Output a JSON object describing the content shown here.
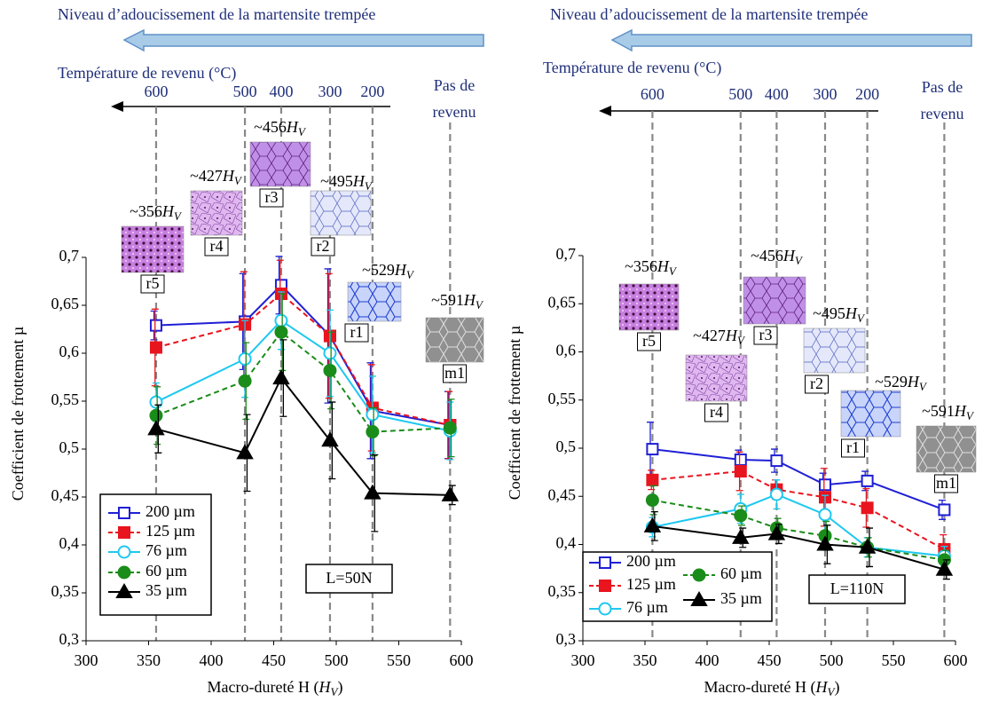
{
  "chart_data": [
    {
      "type": "line",
      "top_label": "Niveau d’adoucissement de la martensite trempée",
      "temperature_axis": {
        "title": "Température de revenu (°C)",
        "labels": [
          600,
          500,
          400,
          300,
          200
        ]
      },
      "no_temper_label": [
        "Pas de",
        "revenu"
      ],
      "hardness_unit": {
        "main": "H",
        "sub": "V"
      },
      "samples": [
        {
          "name": "r5",
          "hardness": "~356"
        },
        {
          "name": "r4",
          "hardness": "~427"
        },
        {
          "name": "r3",
          "hardness": "~456"
        },
        {
          "name": "r2",
          "hardness": "~495"
        },
        {
          "name": "r1",
          "hardness": "~529"
        },
        {
          "name": "m1",
          "hardness": "~591"
        }
      ],
      "xlabel": {
        "text": "Macro-dureté H (",
        "close": ")"
      },
      "ylabel": "Coefficient de frottement µ",
      "annotation": "L=50N",
      "x": [
        356,
        427,
        456,
        495,
        529,
        591
      ],
      "xlim": [
        300,
        600
      ],
      "xticks": [
        300,
        350,
        400,
        450,
        500,
        550,
        600
      ],
      "ylim": [
        0.3,
        0.7
      ],
      "yticks": [
        {
          "value": 0.3,
          "label": "0,3"
        },
        {
          "value": 0.35,
          "label": "0,35"
        },
        {
          "value": 0.4,
          "label": "0,4"
        },
        {
          "value": 0.45,
          "label": "0,45"
        },
        {
          "value": 0.5,
          "label": "0,5"
        },
        {
          "value": 0.55,
          "label": "0,55"
        },
        {
          "value": 0.6,
          "label": "0,6"
        },
        {
          "value": 0.65,
          "label": "0,65"
        },
        {
          "value": 0.7,
          "label": "0,7"
        }
      ],
      "series": [
        {
          "name": "200 µm",
          "color": "#1f1fd6",
          "marker": "square",
          "filled": false,
          "dashed": false,
          "values": [
            0.629,
            0.633,
            0.671,
            0.618,
            0.54,
            0.525
          ],
          "errors": [
            0.015,
            0.05,
            0.03,
            0.07,
            0.05,
            0.035
          ]
        },
        {
          "name": "125 µm",
          "color": "#e8141e",
          "marker": "square",
          "filled": true,
          "dashed": true,
          "values": [
            0.606,
            0.63,
            0.662,
            0.618,
            0.543,
            0.525
          ],
          "errors": [
            0.04,
            0.055,
            0.035,
            0.065,
            0.045,
            0.035
          ]
        },
        {
          "name": "76 µm",
          "color": "#1ec8f0",
          "marker": "circle",
          "filled": false,
          "dashed": false,
          "values": [
            0.549,
            0.594,
            0.634,
            0.6,
            0.536,
            0.519
          ],
          "errors": [
            0.02,
            0.04,
            0.03,
            0.045,
            0.04,
            0.03
          ]
        },
        {
          "name": "60 µm",
          "color": "#1a8c1a",
          "marker": "circle",
          "filled": true,
          "dashed": true,
          "values": [
            0.535,
            0.571,
            0.622,
            0.582,
            0.518,
            0.522
          ],
          "errors": [
            0.03,
            0.04,
            0.04,
            0.04,
            0.025,
            0.03
          ]
        },
        {
          "name": "35 µm",
          "color": "#000000",
          "marker": "triangle",
          "filled": true,
          "dashed": false,
          "values": [
            0.521,
            0.496,
            0.574,
            0.509,
            0.454,
            0.452
          ],
          "errors": [
            0.025,
            0.04,
            0.04,
            0.04,
            0.04,
            0.01
          ]
        }
      ]
    },
    {
      "type": "line",
      "top_label": "Niveau d’adoucissement de la martensite trempée",
      "temperature_axis": {
        "title": "Température de revenu (°C)",
        "labels": [
          600,
          500,
          400,
          300,
          200
        ]
      },
      "no_temper_label": [
        "Pas de",
        "revenu"
      ],
      "hardness_unit": {
        "main": "H",
        "sub": "V"
      },
      "samples": [
        {
          "name": "r5",
          "hardness": "~356"
        },
        {
          "name": "r4",
          "hardness": "~427"
        },
        {
          "name": "r3",
          "hardness": "~456"
        },
        {
          "name": "r2",
          "hardness": "~495"
        },
        {
          "name": "r1",
          "hardness": "~529"
        },
        {
          "name": "m1",
          "hardness": "~591"
        }
      ],
      "xlabel": {
        "text": "Macro-dureté H (",
        "close": ")"
      },
      "ylabel": "Coefficient de frottement µ",
      "annotation": "L=110N",
      "x": [
        356,
        427,
        456,
        495,
        529,
        591
      ],
      "xlim": [
        300,
        600
      ],
      "xticks": [
        300,
        350,
        400,
        450,
        500,
        550,
        600
      ],
      "ylim": [
        0.3,
        0.7
      ],
      "yticks": [
        {
          "value": 0.3,
          "label": "0,3"
        },
        {
          "value": 0.35,
          "label": "0,35"
        },
        {
          "value": 0.4,
          "label": "0,4"
        },
        {
          "value": 0.45,
          "label": "0,45"
        },
        {
          "value": 0.5,
          "label": "0,5"
        },
        {
          "value": 0.55,
          "label": "0,55"
        },
        {
          "value": 0.6,
          "label": "0,6"
        },
        {
          "value": 0.65,
          "label": "0,65"
        },
        {
          "value": 0.7,
          "label": "0,7"
        }
      ],
      "series": [
        {
          "name": "200 µm",
          "color": "#1f1fd6",
          "marker": "square",
          "filled": false,
          "dashed": false,
          "values": [
            0.499,
            0.488,
            0.487,
            0.462,
            0.466,
            0.436
          ],
          "errors": [
            0.028,
            0.01,
            0.012,
            0.012,
            0.01,
            0.01
          ]
        },
        {
          "name": "125 µm",
          "color": "#e8141e",
          "marker": "square",
          "filled": true,
          "dashed": true,
          "values": [
            0.467,
            0.476,
            0.457,
            0.449,
            0.438,
            0.395
          ],
          "errors": [
            0.01,
            0.02,
            0.01,
            0.03,
            0.02,
            0.015
          ]
        },
        {
          "name": "76 µm",
          "color": "#1ec8f0",
          "marker": "circle",
          "filled": false,
          "dashed": false,
          "values": [
            0.418,
            0.437,
            0.452,
            0.431,
            0.397,
            0.388
          ],
          "errors": [
            0.01,
            0.015,
            0.015,
            0.02,
            0.01,
            0.01
          ]
        },
        {
          "name": "60 µm",
          "color": "#1a8c1a",
          "marker": "circle",
          "filled": true,
          "dashed": true,
          "values": [
            0.446,
            0.43,
            0.417,
            0.409,
            0.397,
            0.384
          ],
          "errors": [
            0.015,
            0.01,
            0.01,
            0.015,
            0.01,
            0.01
          ]
        },
        {
          "name": "35 µm",
          "color": "#000000",
          "marker": "triangle",
          "filled": true,
          "dashed": false,
          "values": [
            0.419,
            0.407,
            0.411,
            0.4,
            0.397,
            0.374
          ],
          "errors": [
            0.015,
            0.01,
            0.01,
            0.02,
            0.02,
            0.01
          ]
        }
      ]
    }
  ]
}
